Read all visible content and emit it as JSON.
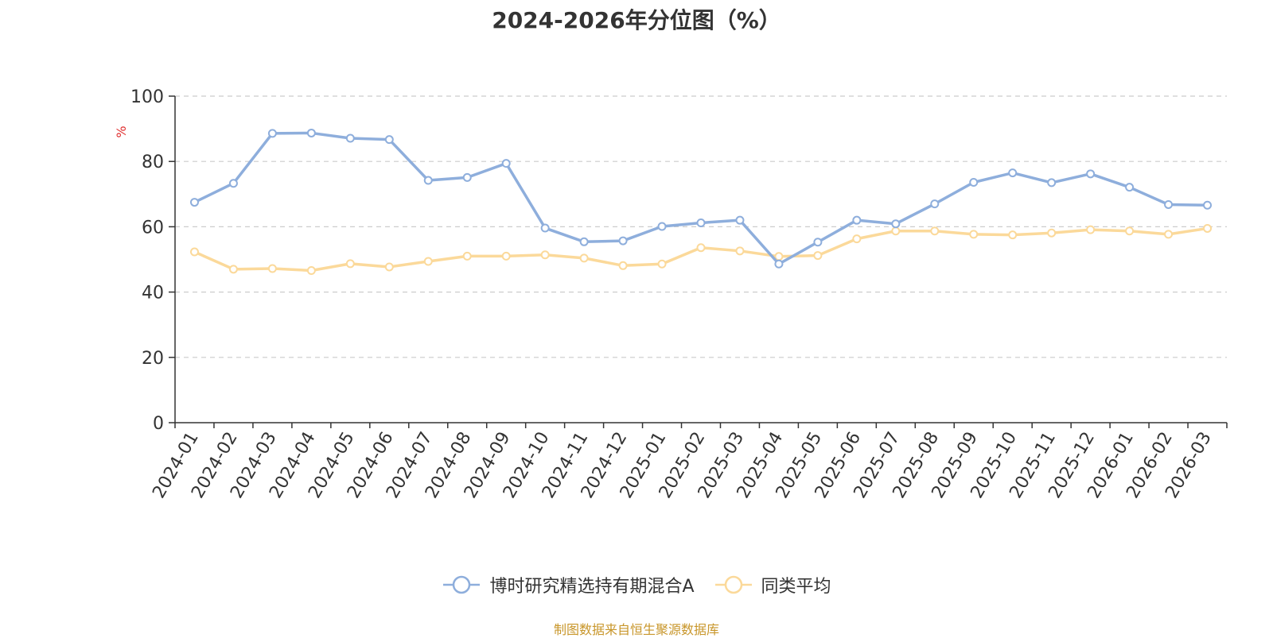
{
  "chart_data": {
    "type": "line",
    "title": "2024-2026年分位图（%）",
    "ylabel": "%",
    "xlabel": "",
    "ylim": [
      0,
      100
    ],
    "yticks": [
      "0",
      "20",
      "40",
      "60",
      "80",
      "100"
    ],
    "grid": true,
    "legend_position": "bottom",
    "categories": [
      "2024-01",
      "2024-02",
      "2024-03",
      "2024-04",
      "2024-05",
      "2024-06",
      "2024-07",
      "2024-08",
      "2024-09",
      "2024-10",
      "2024-11",
      "2024-12",
      "2025-01",
      "2025-02",
      "2025-03",
      "2025-04",
      "2025-05",
      "2025-06",
      "2025-07",
      "2025-08",
      "2025-09",
      "2025-10",
      "2025-11",
      "2025-12",
      "2026-01",
      "2026-02",
      "2026-03"
    ],
    "series": [
      {
        "name": "博时研究精选持有期混合A",
        "color": "#8eaedc",
        "values": [
          67.5,
          73.3,
          88.6,
          88.7,
          87.1,
          86.7,
          74.2,
          75.1,
          79.4,
          59.6,
          55.4,
          55.7,
          60.1,
          61.2,
          62.0,
          48.6,
          55.3,
          62.0,
          60.9,
          67.0,
          73.6,
          76.5,
          73.5,
          76.2,
          72.1,
          66.8,
          66.6
        ]
      },
      {
        "name": "同类平均",
        "color": "#fbd99a",
        "values": [
          52.3,
          47.0,
          47.2,
          46.6,
          48.7,
          47.7,
          49.4,
          51.0,
          51.0,
          51.4,
          50.4,
          48.1,
          48.6,
          53.6,
          52.6,
          50.9,
          51.2,
          56.3,
          58.7,
          58.7,
          57.7,
          57.5,
          58.1,
          59.1,
          58.7,
          57.7,
          59.5
        ]
      }
    ]
  },
  "source_text": "制图数据来自恒生聚源数据库",
  "colors": {
    "title": "#333333",
    "axis": "#333333",
    "grid": "#cccccc",
    "ylabel": "#e03030",
    "source": "#c8962a"
  }
}
